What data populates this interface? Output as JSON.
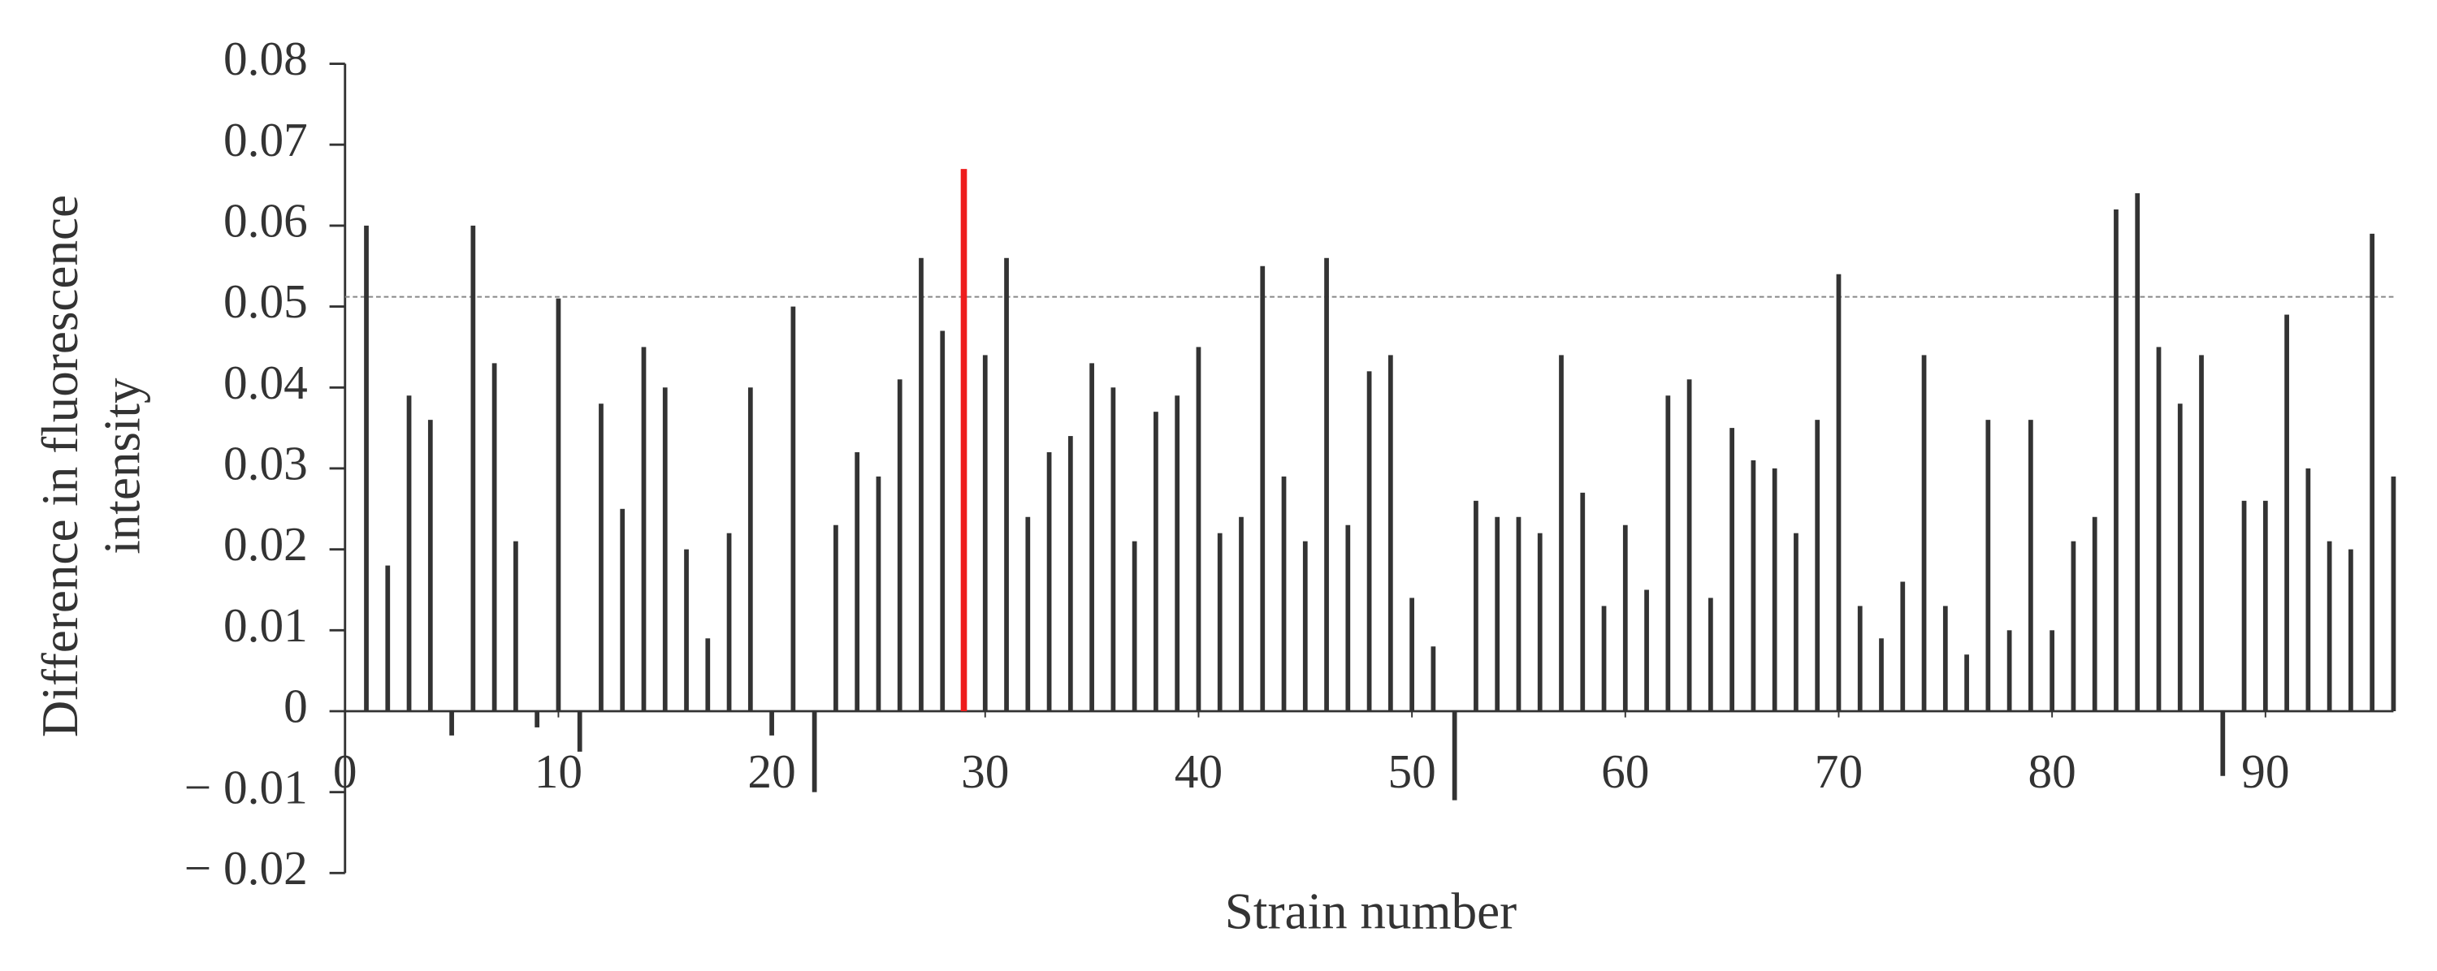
{
  "chart_data": {
    "type": "bar",
    "xlabel": "Strain number",
    "ylabel": [
      "Difference in fluorescence",
      "intensity"
    ],
    "x": [
      1,
      2,
      3,
      4,
      5,
      6,
      7,
      8,
      9,
      10,
      11,
      12,
      13,
      14,
      15,
      16,
      17,
      18,
      19,
      20,
      21,
      22,
      23,
      24,
      25,
      26,
      27,
      28,
      29,
      30,
      31,
      32,
      33,
      34,
      35,
      36,
      37,
      38,
      39,
      40,
      41,
      42,
      43,
      44,
      45,
      46,
      47,
      48,
      49,
      50,
      51,
      52,
      53,
      54,
      55,
      56,
      57,
      58,
      59,
      60,
      61,
      62,
      63,
      64,
      65,
      66,
      67,
      68,
      69,
      70,
      71,
      72,
      73,
      74,
      75,
      76,
      77,
      78,
      79,
      80,
      81,
      82,
      83,
      84,
      85,
      86,
      87,
      88,
      89,
      90,
      91,
      92,
      93,
      94,
      95,
      96
    ],
    "values": [
      0.06,
      0.018,
      0.039,
      0.036,
      -0.003,
      0.06,
      0.043,
      0.021,
      -0.002,
      0.051,
      -0.005,
      0.038,
      0.025,
      0.045,
      0.04,
      0.02,
      0.009,
      0.022,
      0.04,
      -0.003,
      0.05,
      -0.01,
      0.023,
      0.032,
      0.029,
      0.041,
      0.056,
      0.047,
      0.067,
      0.044,
      0.056,
      0.024,
      0.032,
      0.034,
      0.043,
      0.04,
      0.021,
      0.037,
      0.039,
      0.045,
      0.022,
      0.024,
      0.055,
      0.029,
      0.021,
      0.056,
      0.023,
      0.042,
      0.044,
      0.014,
      0.008,
      -0.011,
      0.026,
      0.024,
      0.024,
      0.022,
      0.044,
      0.027,
      0.013,
      0.023,
      0.015,
      0.039,
      0.041,
      0.014,
      0.035,
      0.031,
      0.03,
      0.022,
      0.036,
      0.054,
      0.013,
      0.009,
      0.016,
      0.044,
      0.013,
      0.007,
      0.036,
      0.01,
      0.036,
      0.01,
      0.021,
      0.024,
      0.062,
      0.064,
      0.045,
      0.038,
      0.044,
      -0.008,
      0.026,
      0.026,
      0.049,
      0.03,
      0.021,
      0.02,
      0.059,
      0.029
    ],
    "color": "#333333",
    "highlight_x": 29,
    "highlight_color": "#ee1c1c",
    "threshold": 0.0512,
    "threshold_color": "#888888",
    "xlim": [
      0,
      96
    ],
    "xticks": [
      0,
      10,
      20,
      30,
      40,
      50,
      60,
      70,
      80,
      90
    ],
    "ylim": [
      -0.02,
      0.08
    ],
    "yticks": [
      {
        "value": -0.02,
        "label": "− 0.02"
      },
      {
        "value": -0.01,
        "label": "− 0.01"
      },
      0,
      0.01,
      0.02,
      0.03,
      0.04,
      0.05,
      0.06,
      0.07,
      0.08
    ]
  }
}
